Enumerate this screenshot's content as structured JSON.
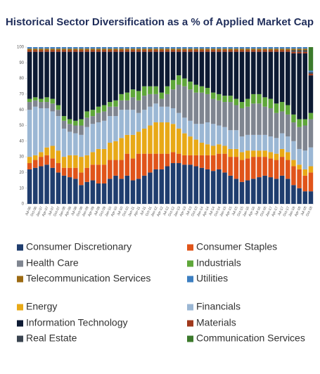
{
  "chart_data": {
    "type": "stacked_bar",
    "title": "Historical Sector Diversification as a % of Applied Market Cap",
    "categories": [
      "Jul-06",
      "Oct-06",
      "Jan-07",
      "Apr-07",
      "Jul-07",
      "Oct-07",
      "Jan-08",
      "Apr-08",
      "Jul-08",
      "Oct-08",
      "Jan-09",
      "Apr-09",
      "Jul-09",
      "Oct-09",
      "Jan-10",
      "Apr-10",
      "Jul-10",
      "Oct-10",
      "Jan-11",
      "Apr-11",
      "Jul-11",
      "Oct-11",
      "Jan-12",
      "Apr-12",
      "Jul-12",
      "Oct-12",
      "Jan-13",
      "Apr-13",
      "Jul-13",
      "Oct-13",
      "Jan-14",
      "Apr-14",
      "Jul-14",
      "Oct-14",
      "Jan-15",
      "Apr-15",
      "Jul-15",
      "Oct-15",
      "Jan-16",
      "Apr-16",
      "Jul-16",
      "Oct-16",
      "Jan-17",
      "Apr-17",
      "Jul-17",
      "Oct-17",
      "Jan-18",
      "Apr-18",
      "Jul-18",
      "Oct-18"
    ],
    "ylim": [
      0,
      100
    ],
    "yticks": [
      0,
      10,
      20,
      30,
      40,
      50,
      60,
      70,
      80,
      90,
      100
    ],
    "series": [
      {
        "name": "Consumer Discretionary",
        "color": "#1f3d6e",
        "values": [
          22,
          23,
          24,
          25,
          23,
          20,
          18,
          17,
          16,
          12,
          14,
          15,
          13,
          13,
          16,
          18,
          16,
          18,
          15,
          16,
          18,
          20,
          22,
          22,
          24,
          26,
          26,
          25,
          25,
          24,
          23,
          22,
          21,
          22,
          20,
          18,
          16,
          14,
          15,
          16,
          17,
          18,
          17,
          16,
          18,
          16,
          12,
          10,
          8,
          8
        ]
      },
      {
        "name": "Consumer Staples",
        "color": "#e0541a",
        "values": [
          4,
          5,
          6,
          6,
          6,
          6,
          5,
          6,
          7,
          8,
          9,
          10,
          12,
          12,
          12,
          10,
          12,
          14,
          14,
          16,
          14,
          12,
          10,
          10,
          8,
          7,
          6,
          6,
          6,
          7,
          8,
          9,
          10,
          10,
          12,
          12,
          14,
          14,
          14,
          14,
          13,
          12,
          12,
          12,
          12,
          12,
          12,
          12,
          10,
          12
        ]
      },
      {
        "name": "Energy",
        "color": "#e8a917",
        "values": [
          4,
          3,
          3,
          5,
          8,
          8,
          7,
          8,
          8,
          10,
          8,
          8,
          10,
          10,
          11,
          12,
          14,
          12,
          15,
          14,
          16,
          18,
          20,
          20,
          20,
          18,
          16,
          14,
          12,
          10,
          8,
          7,
          6,
          6,
          5,
          5,
          5,
          5,
          5,
          4,
          4,
          4,
          4,
          4,
          5,
          5,
          4,
          3,
          4,
          4
        ]
      },
      {
        "name": "Financials",
        "color": "#9bb7d4",
        "values": [
          30,
          31,
          28,
          25,
          22,
          22,
          18,
          15,
          14,
          14,
          18,
          18,
          17,
          18,
          17,
          16,
          18,
          16,
          16,
          12,
          12,
          12,
          12,
          10,
          10,
          10,
          10,
          10,
          10,
          10,
          12,
          14,
          14,
          12,
          12,
          12,
          12,
          10,
          10,
          10,
          10,
          10,
          10,
          10,
          10,
          10,
          12,
          10,
          12,
          12
        ]
      },
      {
        "name": "Health Care",
        "color": "#7f8590",
        "values": [
          5,
          4,
          4,
          4,
          5,
          4,
          5,
          5,
          5,
          6,
          6,
          5,
          6,
          6,
          6,
          6,
          6,
          6,
          8,
          8,
          9,
          8,
          6,
          5,
          8,
          12,
          18,
          20,
          20,
          20,
          20,
          18,
          16,
          16,
          16,
          18,
          16,
          18,
          18,
          20,
          20,
          18,
          18,
          16,
          14,
          14,
          12,
          14,
          16,
          18
        ]
      },
      {
        "name": "Industrials",
        "color": "#5fa73a",
        "values": [
          2,
          2,
          2,
          3,
          3,
          3,
          3,
          3,
          3,
          4,
          4,
          4,
          4,
          4,
          3,
          4,
          4,
          5,
          5,
          6,
          6,
          5,
          5,
          4,
          5,
          6,
          6,
          5,
          5,
          5,
          4,
          4,
          4,
          4,
          4,
          4,
          4,
          4,
          5,
          6,
          6,
          6,
          6,
          6,
          6,
          6,
          5,
          5,
          4,
          4
        ]
      },
      {
        "name": "Information Technology",
        "color": "#0d1a33",
        "values": [
          30,
          29,
          30,
          29,
          30,
          34,
          41,
          43,
          44,
          43,
          38,
          37,
          35,
          34,
          32,
          31,
          27,
          26,
          24,
          25,
          22,
          22,
          22,
          26,
          22,
          18,
          15,
          17,
          19,
          21,
          22,
          23,
          26,
          27,
          28,
          28,
          30,
          32,
          30,
          27,
          27,
          29,
          30,
          33,
          32,
          34,
          39,
          42,
          42,
          24
        ]
      },
      {
        "name": "Materials",
        "color": "#a0391c",
        "values": [
          1,
          1,
          1,
          1,
          1,
          1,
          1,
          1,
          1,
          1,
          1,
          1,
          1,
          1,
          1,
          1,
          1,
          1,
          1,
          1,
          1,
          1,
          1,
          1,
          1,
          1,
          1,
          1,
          1,
          1,
          1,
          1,
          1,
          1,
          1,
          1,
          1,
          1,
          1,
          1,
          1,
          1,
          1,
          1,
          1,
          1,
          1,
          1,
          1,
          1
        ]
      },
      {
        "name": "Real Estate",
        "color": "#3a4450",
        "values": [
          0,
          0,
          0,
          0,
          0,
          0,
          0,
          0,
          0,
          0,
          0,
          0,
          0,
          0,
          0,
          0,
          0,
          0,
          0,
          0,
          0,
          0,
          0,
          0,
          0,
          0,
          0,
          0,
          0,
          0,
          0,
          0,
          0,
          0,
          0,
          0,
          0,
          0,
          0,
          0,
          0,
          0,
          0,
          0,
          0,
          0,
          1,
          1,
          1,
          1
        ]
      },
      {
        "name": "Telecommunication Services",
        "color": "#9c6a12",
        "values": [
          1,
          1,
          1,
          1,
          1,
          1,
          1,
          1,
          1,
          1,
          1,
          1,
          1,
          1,
          1,
          1,
          1,
          1,
          1,
          1,
          1,
          1,
          1,
          1,
          1,
          1,
          1,
          1,
          1,
          1,
          1,
          1,
          1,
          1,
          1,
          1,
          1,
          1,
          1,
          1,
          1,
          1,
          1,
          1,
          1,
          1,
          1,
          1,
          1,
          0
        ]
      },
      {
        "name": "Utilities",
        "color": "#3d7fc1",
        "values": [
          1,
          1,
          1,
          1,
          1,
          1,
          1,
          1,
          1,
          1,
          1,
          1,
          1,
          1,
          1,
          1,
          1,
          1,
          1,
          1,
          1,
          1,
          1,
          1,
          1,
          1,
          1,
          1,
          1,
          1,
          1,
          1,
          1,
          1,
          1,
          1,
          1,
          1,
          1,
          1,
          1,
          1,
          1,
          1,
          1,
          1,
          1,
          1,
          1,
          1
        ]
      },
      {
        "name": "Communication Services",
        "color": "#3c7a2c",
        "values": [
          0,
          0,
          0,
          0,
          0,
          0,
          0,
          0,
          0,
          0,
          0,
          0,
          0,
          0,
          0,
          0,
          0,
          0,
          0,
          0,
          0,
          0,
          0,
          0,
          0,
          0,
          0,
          0,
          0,
          0,
          0,
          0,
          0,
          0,
          0,
          0,
          0,
          0,
          0,
          0,
          0,
          0,
          0,
          0,
          0,
          0,
          0,
          0,
          0,
          15
        ]
      }
    ]
  }
}
